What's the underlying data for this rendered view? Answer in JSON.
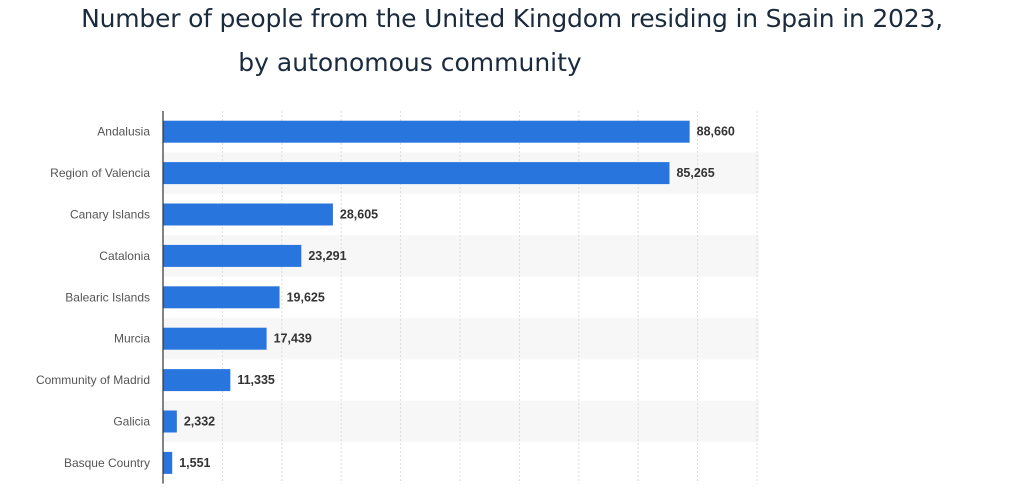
{
  "title_line1": "Number of people from the United Kingdom residing in Spain in 2023,",
  "title_line2": "by autonomous community",
  "chart_data": {
    "type": "bar",
    "orientation": "horizontal",
    "title": "Number of people from the United Kingdom residing in Spain in 2023, by autonomous community",
    "categories": [
      "Andalusia",
      "Region of Valencia",
      "Canary Islands",
      "Catalonia",
      "Balearic Islands",
      "Murcia",
      "Community of Madrid",
      "Galicia",
      "Basque Country"
    ],
    "values": [
      88660,
      85265,
      28605,
      23291,
      19625,
      17439,
      11335,
      2332,
      1551
    ],
    "value_labels": [
      "88,660",
      "85,265",
      "28,605",
      "23,291",
      "19,625",
      "17,439",
      "11,335",
      "2,332",
      "1,551"
    ],
    "xlim": [
      0,
      100000
    ],
    "grid": true,
    "bar_color": "#2876dd"
  }
}
